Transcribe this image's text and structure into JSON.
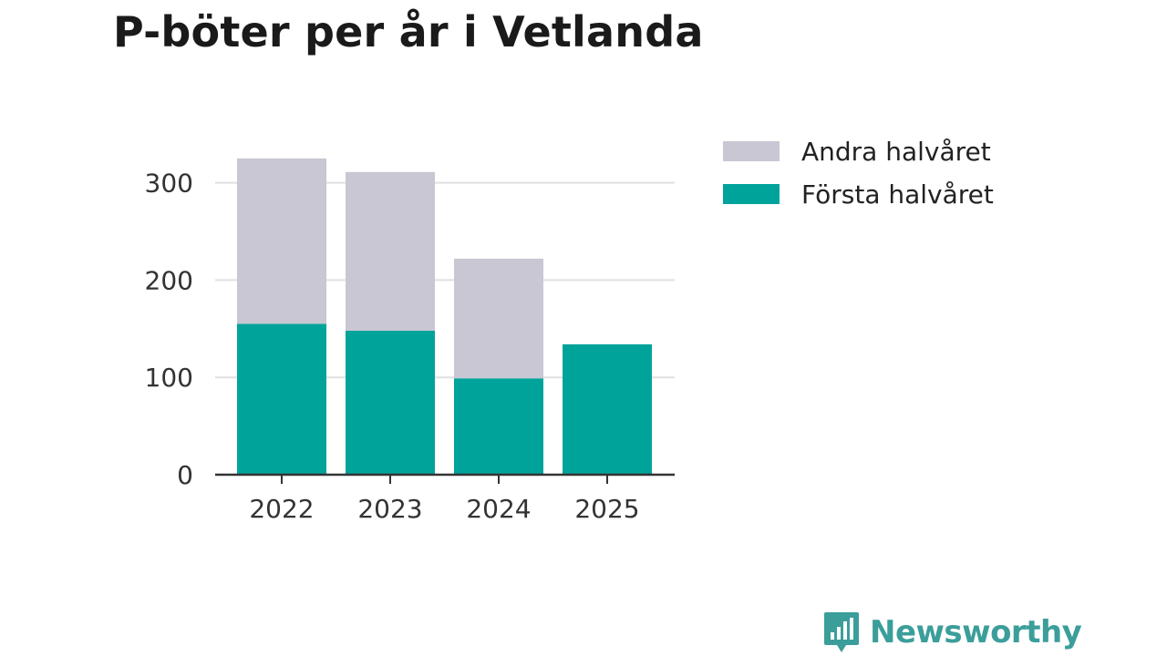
{
  "chart_data": {
    "type": "bar",
    "stacked": true,
    "title": "P-böter per år i Vetlanda",
    "categories": [
      "2022",
      "2023",
      "2024",
      "2025"
    ],
    "series": [
      {
        "name": "Första halvåret",
        "color": "#00a39a",
        "values": [
          155,
          148,
          99,
          134
        ]
      },
      {
        "name": "Andra halvåret",
        "color": "#c8c7d3",
        "values": [
          170,
          163,
          123,
          null
        ]
      }
    ],
    "legend": [
      "Andra halvåret",
      "Första halvåret"
    ],
    "xlabel": "",
    "ylabel": "",
    "ylim": [
      0,
      340
    ],
    "yticks": [
      0,
      100,
      200,
      300
    ],
    "grid": true,
    "legend_position": "right"
  },
  "brand": {
    "name": "Newsworthy",
    "color": "#3b9e9a",
    "icon": "bar-chart-speech-icon"
  }
}
